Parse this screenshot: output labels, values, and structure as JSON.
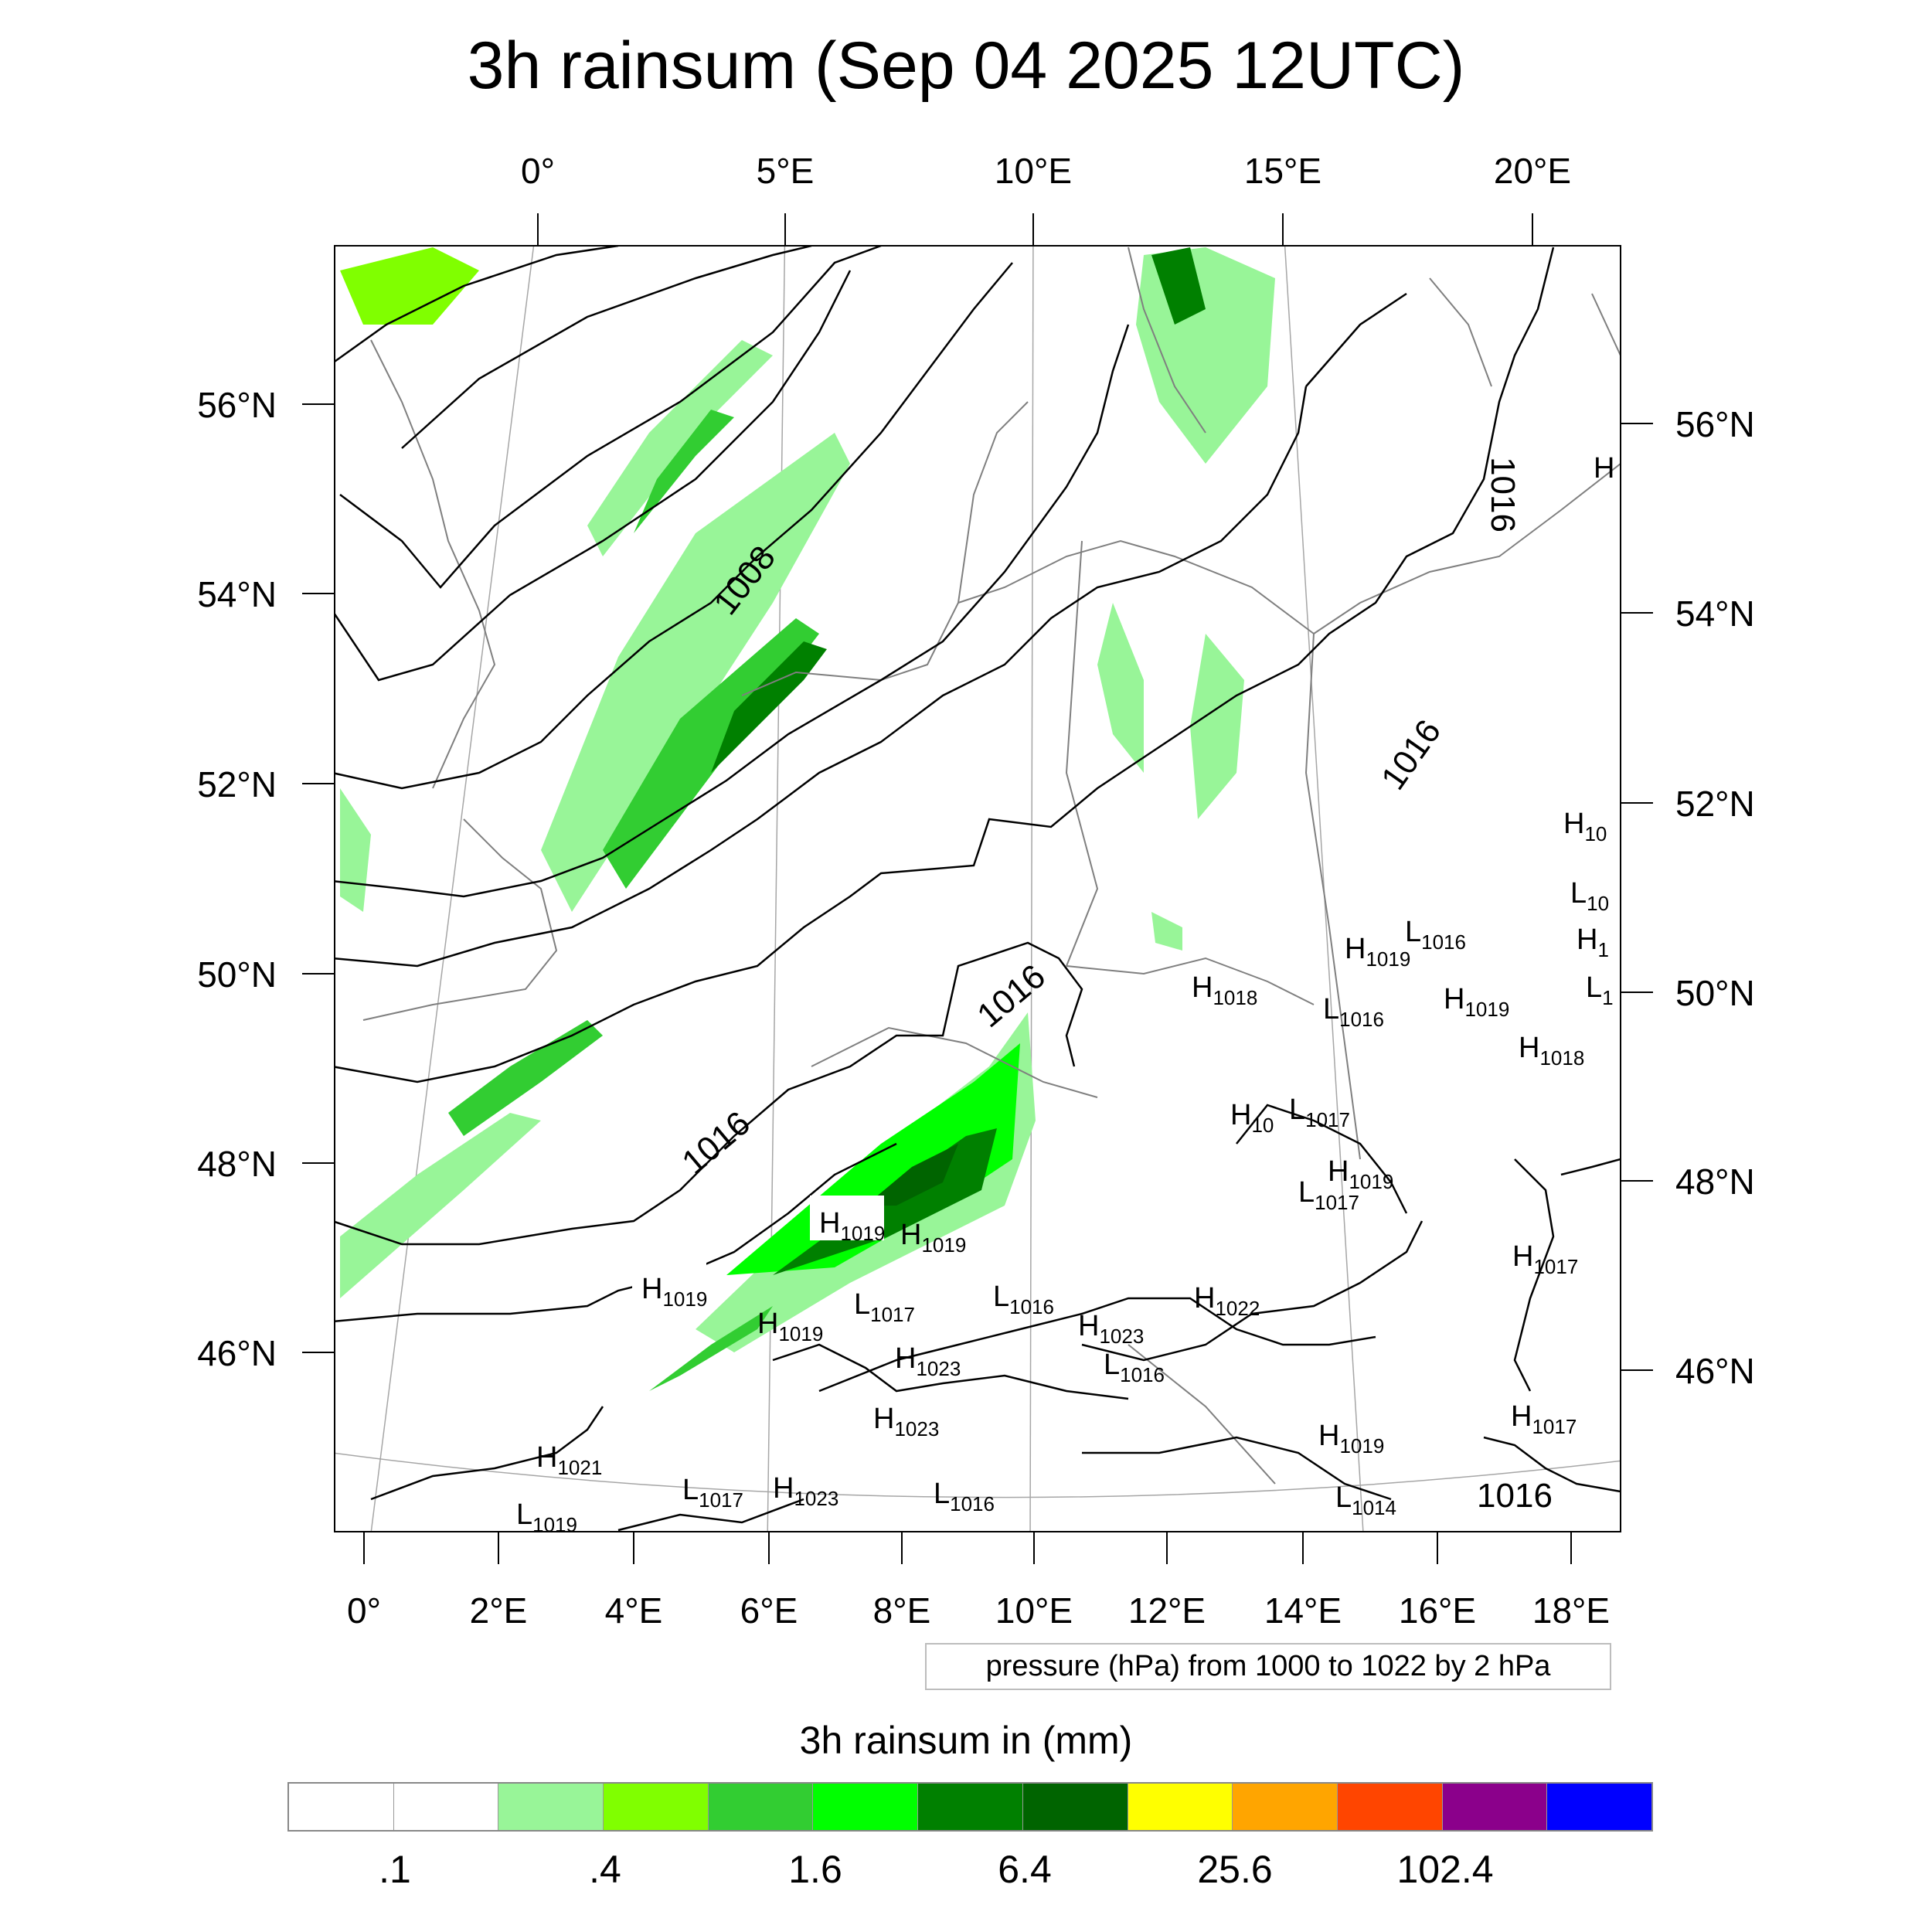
{
  "title": "3h rainsum (Sep 04 2025 12UTC)",
  "top_lon_labels": [
    "0°",
    "5°E",
    "10°E",
    "15°E",
    "20°E"
  ],
  "bottom_lon_labels": [
    "0°",
    "2°E",
    "4°E",
    "6°E",
    "8°E",
    "10°E",
    "12°E",
    "14°E",
    "16°E",
    "18°E"
  ],
  "left_lat_labels": [
    "56°N",
    "54°N",
    "52°N",
    "50°N",
    "48°N",
    "46°N"
  ],
  "right_lat_labels": [
    "56°N",
    "54°N",
    "52°N",
    "50°N",
    "48°N",
    "46°N"
  ],
  "contour_labels": [
    "1008",
    "1016",
    "1016",
    "1016",
    "1016",
    "1016"
  ],
  "pressure_centers": [
    {
      "t": "H",
      "v": "1019"
    },
    {
      "t": "H",
      "v": "1019"
    },
    {
      "t": "H",
      "v": "1019"
    },
    {
      "t": "H",
      "v": "1019"
    },
    {
      "t": "L",
      "v": "1017"
    },
    {
      "t": "L",
      "v": "1016"
    },
    {
      "t": "H",
      "v": "1023"
    },
    {
      "t": "H",
      "v": "1023"
    },
    {
      "t": "H",
      "v": "1023"
    },
    {
      "t": "L",
      "v": "1016"
    },
    {
      "t": "H",
      "v": "1022"
    },
    {
      "t": "H",
      "v": "1018"
    },
    {
      "t": "H",
      "v": "1019"
    },
    {
      "t": "L",
      "v": "1016"
    },
    {
      "t": "L",
      "v": "1016"
    },
    {
      "t": "H",
      "v": "1019"
    },
    {
      "t": "H",
      "v": "1018"
    },
    {
      "t": "H",
      "v": "10"
    },
    {
      "t": "L",
      "v": "1017"
    },
    {
      "t": "H",
      "v": "1019"
    },
    {
      "t": "L",
      "v": "1017"
    },
    {
      "t": "H",
      "v": "1017"
    },
    {
      "t": "H",
      "v": "1017"
    },
    {
      "t": "H",
      "v": "1019"
    },
    {
      "t": "L",
      "v": "1014"
    },
    {
      "t": "H",
      "v": "1021"
    },
    {
      "t": "L",
      "v": "1019"
    },
    {
      "t": "L",
      "v": "1017"
    },
    {
      "t": "H",
      "v": "1023"
    },
    {
      "t": "L",
      "v": "1016"
    },
    {
      "t": "H",
      "v": "10"
    },
    {
      "t": "L",
      "v": "10"
    },
    {
      "t": "H",
      "v": "1"
    },
    {
      "t": "L",
      "v": "1"
    },
    {
      "t": "H",
      "v": ""
    }
  ],
  "contour_info": "pressure (hPa) from 1000 to 1022 by 2 hPa",
  "colorbar": {
    "title": "3h rainsum in (mm)",
    "colors": [
      "#ffffff",
      "#ffffff",
      "#98f598",
      "#80ff00",
      "#32cd32",
      "#00ff00",
      "#008000",
      "#006400",
      "#ffff00",
      "#ffa500",
      "#ff4500",
      "#8b008b",
      "#0000ff"
    ],
    "labels": [
      ".1",
      ".4",
      "1.6",
      "6.4",
      "25.6",
      "102.4"
    ]
  },
  "rain_colors": {
    "light": "#98f598",
    "lime": "#80ff00",
    "green": "#32cd32",
    "bright": "#00ff00",
    "dark": "#008000",
    "darkest": "#006400"
  }
}
